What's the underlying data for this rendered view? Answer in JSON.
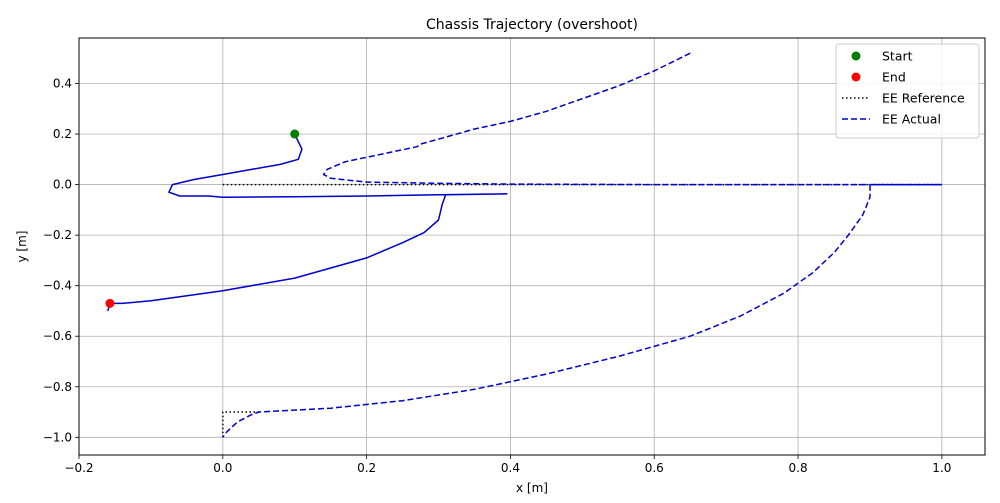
{
  "chart_data": {
    "type": "line",
    "title": "Chassis Trajectory (overshoot)",
    "xlabel": "x [m]",
    "ylabel": "y [m]",
    "xlim": [
      -0.2,
      1.06
    ],
    "ylim": [
      -1.07,
      0.58
    ],
    "xticks": [
      -0.2,
      0.0,
      0.2,
      0.4,
      0.6,
      0.8,
      1.0
    ],
    "xtick_labels": [
      "−0.2",
      "0.0",
      "0.2",
      "0.4",
      "0.6",
      "0.8",
      "1.0"
    ],
    "yticks": [
      -1.0,
      -0.8,
      -0.6,
      -0.4,
      -0.2,
      0.0,
      0.2,
      0.4
    ],
    "ytick_labels": [
      "−1.0",
      "−0.8",
      "−0.6",
      "−0.4",
      "−0.2",
      "0.0",
      "0.2",
      "0.4"
    ],
    "grid": true,
    "legend_position": "top-right",
    "legend": [
      {
        "label": "Start",
        "kind": "marker",
        "color": "#008000"
      },
      {
        "label": "End",
        "kind": "marker",
        "color": "#ff0000"
      },
      {
        "label": "EE Reference",
        "kind": "dotted",
        "color": "#000000"
      },
      {
        "label": "EE Actual",
        "kind": "dashed",
        "color": "#0000cc"
      }
    ],
    "series": [
      {
        "name": "",
        "style": "solid",
        "color": "#0000cc",
        "x": [
          0.1,
          0.105,
          0.11,
          0.105,
          0.08,
          0.04,
          0.0,
          -0.04,
          -0.07,
          -0.075,
          -0.06,
          -0.02,
          0.0,
          0.1,
          0.2,
          0.3,
          0.395,
          0.31,
          0.305,
          0.3,
          0.28,
          0.25,
          0.2,
          0.15,
          0.1,
          0.0,
          -0.05,
          -0.1,
          -0.14,
          -0.155,
          -0.158,
          -0.16
        ],
        "y": [
          0.2,
          0.17,
          0.14,
          0.1,
          0.08,
          0.06,
          0.04,
          0.02,
          0.0,
          -0.03,
          -0.045,
          -0.045,
          -0.05,
          -0.048,
          -0.045,
          -0.04,
          -0.037,
          -0.04,
          -0.08,
          -0.14,
          -0.19,
          -0.23,
          -0.29,
          -0.33,
          -0.37,
          -0.42,
          -0.44,
          -0.46,
          -0.47,
          -0.47,
          -0.48,
          -0.5
        ]
      },
      {
        "name": "EE Reference",
        "style": "dotted",
        "color": "#000000",
        "x": [
          0.0,
          0.5,
          1.0
        ],
        "y": [
          0.0,
          0.0,
          0.0
        ]
      },
      {
        "name": "EE Reference",
        "style": "dotted",
        "color": "#000000",
        "x": [
          0.0,
          0.0,
          0.05
        ],
        "y": [
          -1.0,
          -0.9,
          -0.9
        ]
      },
      {
        "name": "EE Actual",
        "style": "dashed",
        "color": "#0000cc",
        "x": [
          0.65,
          0.6,
          0.55,
          0.5,
          0.45,
          0.4,
          0.35,
          0.3,
          0.275,
          0.27,
          0.22,
          0.17,
          0.145,
          0.14,
          0.15,
          0.2,
          0.3,
          0.4,
          0.6,
          0.8,
          1.0
        ],
        "y": [
          0.52,
          0.45,
          0.39,
          0.34,
          0.29,
          0.25,
          0.22,
          0.18,
          0.16,
          0.15,
          0.12,
          0.09,
          0.06,
          0.04,
          0.025,
          0.01,
          0.005,
          0.002,
          0.0,
          0.0,
          0.0
        ]
      },
      {
        "name": "EE Actual",
        "style": "dashed",
        "color": "#0000cc",
        "x": [
          1.0,
          0.95,
          0.9,
          0.9,
          0.89,
          0.87,
          0.85,
          0.82,
          0.78,
          0.72,
          0.65,
          0.55,
          0.45,
          0.35,
          0.25,
          0.15,
          0.05,
          0.04,
          0.02,
          0.005,
          0.0
        ],
        "y": [
          0.0,
          0.0,
          0.0,
          -0.05,
          -0.12,
          -0.2,
          -0.27,
          -0.35,
          -0.43,
          -0.52,
          -0.6,
          -0.68,
          -0.75,
          -0.81,
          -0.855,
          -0.885,
          -0.9,
          -0.91,
          -0.94,
          -0.98,
          -1.0
        ]
      }
    ],
    "markers": [
      {
        "name": "Start",
        "x": 0.1,
        "y": 0.2,
        "color": "#008000"
      },
      {
        "name": "End",
        "x": -0.157,
        "y": -0.47,
        "color": "#ff0000"
      }
    ]
  }
}
